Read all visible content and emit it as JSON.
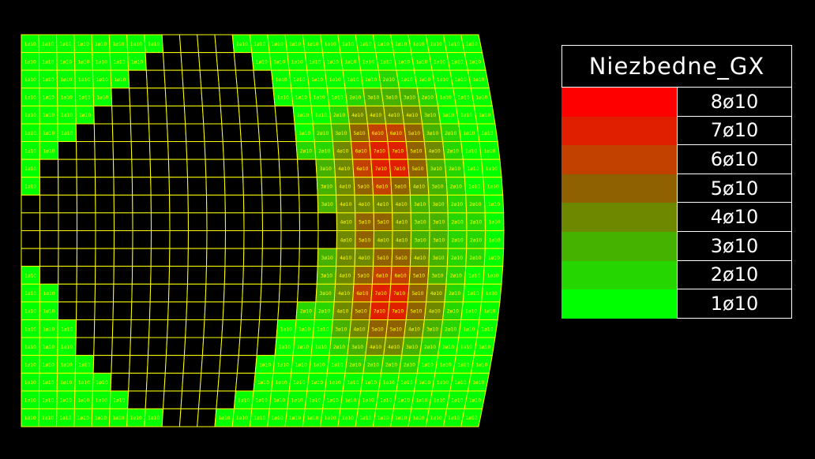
{
  "legend": {
    "title": "Niezbedne_GX",
    "items": [
      {
        "label": "8ø10",
        "color": "#ff0000"
      },
      {
        "label": "7ø10",
        "color": "#e01e00"
      },
      {
        "label": "6ø10",
        "color": "#c24000"
      },
      {
        "label": "5ø10",
        "color": "#8f6100"
      },
      {
        "label": "4ø10",
        "color": "#6e8800"
      },
      {
        "label": "3ø10",
        "color": "#46b200"
      },
      {
        "label": "2ø10",
        "color": "#26d600"
      },
      {
        "label": "1ø10",
        "color": "#00ff00"
      }
    ]
  },
  "mesh": {
    "line_color": "#ffff00",
    "empty_color": "#000000",
    "label_color": "#ffff00"
  }
}
